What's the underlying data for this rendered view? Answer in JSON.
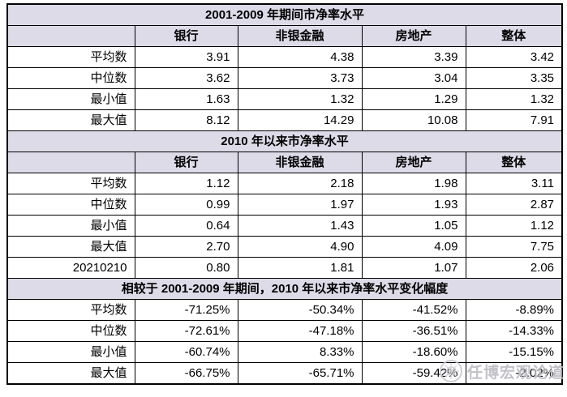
{
  "colors": {
    "band_bg": "#dedbe8",
    "border": "#000000",
    "page_bg": "#ffffff",
    "watermark_gray": "#b7b7bf"
  },
  "watermark": {
    "text": "任博宏观论道",
    "logo": "circle-seal-icon"
  },
  "table": {
    "columns": [
      "",
      "银行",
      "非银金融",
      "房地产",
      "整体"
    ],
    "sections": [
      {
        "title": "2001-2009 年期间市净率水平",
        "show_header": true,
        "rows": [
          {
            "label": "平均数",
            "values": [
              "3.91",
              "4.38",
              "3.39",
              "3.42"
            ]
          },
          {
            "label": "中位数",
            "values": [
              "3.62",
              "3.73",
              "3.04",
              "3.35"
            ]
          },
          {
            "label": "最小值",
            "values": [
              "1.63",
              "1.32",
              "1.29",
              "1.32"
            ]
          },
          {
            "label": "最大值",
            "values": [
              "8.12",
              "14.29",
              "10.08",
              "7.91"
            ]
          }
        ]
      },
      {
        "title": "2010 年以来市净率水平",
        "show_header": true,
        "rows": [
          {
            "label": "平均数",
            "values": [
              "1.12",
              "2.18",
              "1.98",
              "3.11"
            ]
          },
          {
            "label": "中位数",
            "values": [
              "0.99",
              "1.97",
              "1.93",
              "2.87"
            ]
          },
          {
            "label": "最小值",
            "values": [
              "0.64",
              "1.43",
              "1.05",
              "1.12"
            ]
          },
          {
            "label": "最大值",
            "values": [
              "2.70",
              "4.90",
              "4.09",
              "7.75"
            ]
          },
          {
            "label": "20210210",
            "values": [
              "0.80",
              "1.81",
              "1.07",
              "2.06"
            ]
          }
        ]
      },
      {
        "title": "相较于 2001-2009 年期间，2010 年以来市净率水平变化幅度",
        "show_header": false,
        "rows": [
          {
            "label": "平均数",
            "values": [
              "-71.25%",
              "-50.34%",
              "-41.52%",
              "-8.89%"
            ]
          },
          {
            "label": "中位数",
            "values": [
              "-72.61%",
              "-47.18%",
              "-36.51%",
              "-14.33%"
            ]
          },
          {
            "label": "最小值",
            "values": [
              "-60.74%",
              "8.33%",
              "-18.60%",
              "-15.15%"
            ]
          },
          {
            "label": "最大值",
            "values": [
              "-66.75%",
              "-65.71%",
              "-59.42%",
              "-2.02%"
            ]
          }
        ]
      }
    ]
  },
  "chart_data": [
    {
      "type": "table",
      "title": "2001-2009 年期间市净率水平",
      "columns": [
        "",
        "银行",
        "非银金融",
        "房地产",
        "整体"
      ],
      "rows": [
        [
          "平均数",
          3.91,
          4.38,
          3.39,
          3.42
        ],
        [
          "中位数",
          3.62,
          3.73,
          3.04,
          3.35
        ],
        [
          "最小值",
          1.63,
          1.32,
          1.29,
          1.32
        ],
        [
          "最大值",
          8.12,
          14.29,
          10.08,
          7.91
        ]
      ]
    },
    {
      "type": "table",
      "title": "2010 年以来市净率水平",
      "columns": [
        "",
        "银行",
        "非银金融",
        "房地产",
        "整体"
      ],
      "rows": [
        [
          "平均数",
          1.12,
          2.18,
          1.98,
          3.11
        ],
        [
          "中位数",
          0.99,
          1.97,
          1.93,
          2.87
        ],
        [
          "最小值",
          0.64,
          1.43,
          1.05,
          1.12
        ],
        [
          "最大值",
          2.7,
          4.9,
          4.09,
          7.75
        ],
        [
          "20210210",
          0.8,
          1.81,
          1.07,
          2.06
        ]
      ]
    },
    {
      "type": "table",
      "title": "相较于 2001-2009 年期间，2010 年以来市净率水平变化幅度",
      "columns": [
        "",
        "银行",
        "非银金融",
        "房地产",
        "整体"
      ],
      "rows": [
        [
          "平均数",
          "-71.25%",
          "-50.34%",
          "-41.52%",
          "-8.89%"
        ],
        [
          "中位数",
          "-72.61%",
          "-47.18%",
          "-36.51%",
          "-14.33%"
        ],
        [
          "最小值",
          "-60.74%",
          "8.33%",
          "-18.60%",
          "-15.15%"
        ],
        [
          "最大值",
          "-66.75%",
          "-65.71%",
          "-59.42%",
          "-2.02%"
        ]
      ]
    }
  ]
}
